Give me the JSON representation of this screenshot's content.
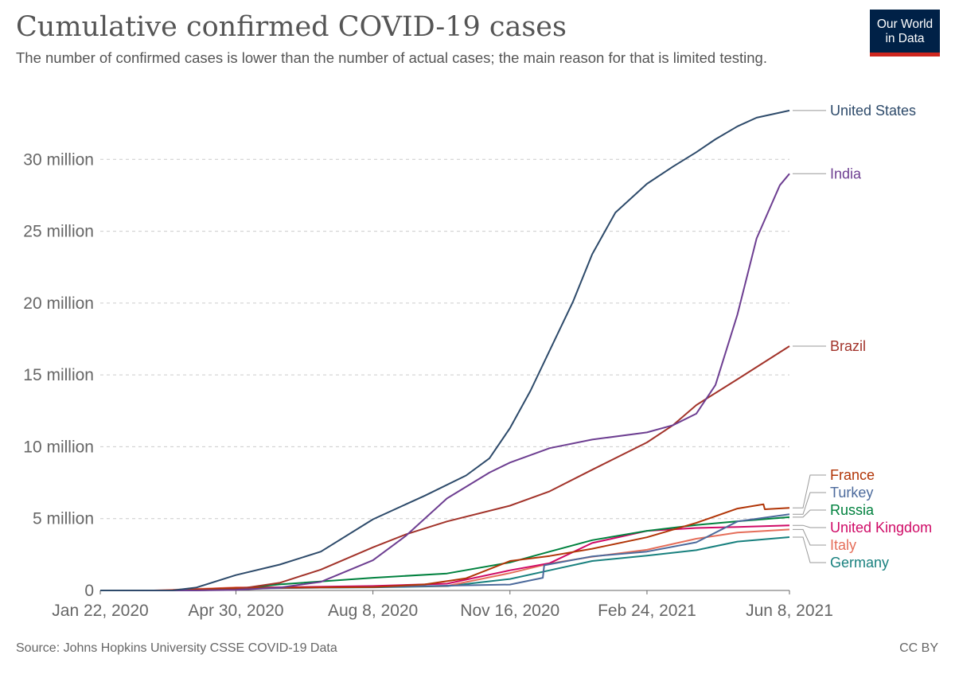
{
  "header": {
    "title": "Cumulative confirmed COVID-19 cases",
    "subtitle": "The number of confirmed cases is lower than the number of actual cases; the main reason for that is limited testing.",
    "logo_line1": "Our World",
    "logo_line2": "in Data"
  },
  "footer": {
    "source": "Source: Johns Hopkins University CSSE COVID-19 Data",
    "license": "CC BY"
  },
  "colors": {
    "grid": "#cccccc",
    "axis": "#666666",
    "tick_text": "#666666",
    "logo_bg": "#002147",
    "logo_bar": "#ce261e"
  },
  "chart_data": {
    "type": "line",
    "title": "Cumulative confirmed COVID-19 cases",
    "subtitle": "The number of confirmed cases is lower than the number of actual cases; the main reason for that is limited testing.",
    "x_start": "2020-01-22",
    "x_end": "2021-06-08",
    "x_ticks": [
      {
        "date": "2020-01-22",
        "label": "Jan 22, 2020"
      },
      {
        "date": "2020-04-30",
        "label": "Apr 30, 2020"
      },
      {
        "date": "2020-08-08",
        "label": "Aug 8, 2020"
      },
      {
        "date": "2020-11-16",
        "label": "Nov 16, 2020"
      },
      {
        "date": "2021-02-24",
        "label": "Feb 24, 2021"
      },
      {
        "date": "2021-06-08",
        "label": "Jun 8, 2021"
      }
    ],
    "ylim": [
      0,
      35000000
    ],
    "y_ticks": [
      {
        "value": 0,
        "label": "0"
      },
      {
        "value": 5000000,
        "label": "5 million"
      },
      {
        "value": 10000000,
        "label": "10 million"
      },
      {
        "value": 15000000,
        "label": "15 million"
      },
      {
        "value": 20000000,
        "label": "20 million"
      },
      {
        "value": 25000000,
        "label": "25 million"
      },
      {
        "value": 30000000,
        "label": "30 million"
      }
    ],
    "grid": true,
    "legend": "right, labels at line ends",
    "series": [
      {
        "name": "United States",
        "color": "#2d4a6a",
        "points": [
          [
            "2020-01-22",
            0
          ],
          [
            "2020-03-15",
            3000
          ],
          [
            "2020-04-01",
            200000
          ],
          [
            "2020-04-30",
            1070000
          ],
          [
            "2020-06-01",
            1800000
          ],
          [
            "2020-07-01",
            2700000
          ],
          [
            "2020-08-08",
            4950000
          ],
          [
            "2020-09-15",
            6600000
          ],
          [
            "2020-10-15",
            8000000
          ],
          [
            "2020-11-01",
            9200000
          ],
          [
            "2020-11-16",
            11300000
          ],
          [
            "2020-12-01",
            13900000
          ],
          [
            "2020-12-15",
            16700000
          ],
          [
            "2021-01-01",
            20100000
          ],
          [
            "2021-01-15",
            23400000
          ],
          [
            "2021-02-01",
            26300000
          ],
          [
            "2021-02-24",
            28300000
          ],
          [
            "2021-03-15",
            29500000
          ],
          [
            "2021-04-01",
            30500000
          ],
          [
            "2021-04-15",
            31400000
          ],
          [
            "2021-05-01",
            32300000
          ],
          [
            "2021-05-15",
            32900000
          ],
          [
            "2021-06-08",
            33400000
          ]
        ]
      },
      {
        "name": "India",
        "color": "#6d3e91",
        "points": [
          [
            "2020-01-22",
            0
          ],
          [
            "2020-04-01",
            2000
          ],
          [
            "2020-04-30",
            35000
          ],
          [
            "2020-06-01",
            200000
          ],
          [
            "2020-07-01",
            600000
          ],
          [
            "2020-08-08",
            2100000
          ],
          [
            "2020-09-01",
            3800000
          ],
          [
            "2020-10-01",
            6400000
          ],
          [
            "2020-11-01",
            8200000
          ],
          [
            "2020-11-16",
            8900000
          ],
          [
            "2020-12-15",
            9900000
          ],
          [
            "2021-01-15",
            10500000
          ],
          [
            "2021-02-24",
            11000000
          ],
          [
            "2021-03-15",
            11500000
          ],
          [
            "2021-04-01",
            12300000
          ],
          [
            "2021-04-15",
            14300000
          ],
          [
            "2021-05-01",
            19200000
          ],
          [
            "2021-05-15",
            24500000
          ],
          [
            "2021-06-01",
            28200000
          ],
          [
            "2021-06-08",
            29000000
          ]
        ]
      },
      {
        "name": "Brazil",
        "color": "#a2332a",
        "points": [
          [
            "2020-01-22",
            0
          ],
          [
            "2020-04-01",
            6000
          ],
          [
            "2020-04-30",
            85000
          ],
          [
            "2020-06-01",
            530000
          ],
          [
            "2020-07-01",
            1450000
          ],
          [
            "2020-08-08",
            3000000
          ],
          [
            "2020-09-01",
            3900000
          ],
          [
            "2020-10-01",
            4800000
          ],
          [
            "2020-11-16",
            5900000
          ],
          [
            "2020-12-15",
            6900000
          ],
          [
            "2021-01-15",
            8400000
          ],
          [
            "2021-02-24",
            10300000
          ],
          [
            "2021-03-15",
            11500000
          ],
          [
            "2021-04-01",
            12900000
          ],
          [
            "2021-05-01",
            14700000
          ],
          [
            "2021-06-08",
            17000000
          ]
        ]
      },
      {
        "name": "France",
        "color": "#b13507",
        "points": [
          [
            "2020-01-22",
            0
          ],
          [
            "2020-03-15",
            5000
          ],
          [
            "2020-04-30",
            170000
          ],
          [
            "2020-08-08",
            230000
          ],
          [
            "2020-09-15",
            420000
          ],
          [
            "2020-10-15",
            850000
          ],
          [
            "2020-11-16",
            2050000
          ],
          [
            "2020-12-15",
            2400000
          ],
          [
            "2021-01-15",
            2900000
          ],
          [
            "2021-02-24",
            3700000
          ],
          [
            "2021-04-01",
            4700000
          ],
          [
            "2021-05-01",
            5700000
          ],
          [
            "2021-05-20",
            6000000
          ],
          [
            "2021-05-21",
            5650000
          ],
          [
            "2021-06-08",
            5750000
          ]
        ]
      },
      {
        "name": "Turkey",
        "color": "#4c6a9c",
        "points": [
          [
            "2020-01-22",
            0
          ],
          [
            "2020-03-15",
            10
          ],
          [
            "2020-04-30",
            120000
          ],
          [
            "2020-08-08",
            240000
          ],
          [
            "2020-11-16",
            410000
          ],
          [
            "2020-12-10",
            880000
          ],
          [
            "2020-12-11",
            1750000
          ],
          [
            "2021-01-15",
            2370000
          ],
          [
            "2021-02-24",
            2700000
          ],
          [
            "2021-04-01",
            3350000
          ],
          [
            "2021-05-01",
            4800000
          ],
          [
            "2021-06-08",
            5300000
          ]
        ]
      },
      {
        "name": "Russia",
        "color": "#00813e",
        "points": [
          [
            "2020-01-22",
            0
          ],
          [
            "2020-03-20",
            200
          ],
          [
            "2020-04-30",
            110000
          ],
          [
            "2020-06-01",
            420000
          ],
          [
            "2020-08-08",
            880000
          ],
          [
            "2020-10-01",
            1180000
          ],
          [
            "2020-11-16",
            1950000
          ],
          [
            "2020-12-15",
            2700000
          ],
          [
            "2021-01-15",
            3500000
          ],
          [
            "2021-02-24",
            4150000
          ],
          [
            "2021-04-01",
            4550000
          ],
          [
            "2021-05-01",
            4810000
          ],
          [
            "2021-06-08",
            5100000
          ]
        ]
      },
      {
        "name": "United Kingdom",
        "color": "#cf0a66",
        "points": [
          [
            "2020-01-22",
            0
          ],
          [
            "2020-03-15",
            1400
          ],
          [
            "2020-04-30",
            170000
          ],
          [
            "2020-08-08",
            310000
          ],
          [
            "2020-10-01",
            470000
          ],
          [
            "2020-11-16",
            1400000
          ],
          [
            "2020-12-15",
            1900000
          ],
          [
            "2021-01-15",
            3300000
          ],
          [
            "2021-02-24",
            4150000
          ],
          [
            "2021-04-01",
            4350000
          ],
          [
            "2021-05-01",
            4420000
          ],
          [
            "2021-06-08",
            4530000
          ]
        ]
      },
      {
        "name": "Italy",
        "color": "#e56e5a",
        "points": [
          [
            "2020-01-22",
            0
          ],
          [
            "2020-03-01",
            1700
          ],
          [
            "2020-04-30",
            205000
          ],
          [
            "2020-08-08",
            250000
          ],
          [
            "2020-10-01",
            315000
          ],
          [
            "2020-11-16",
            1210000
          ],
          [
            "2020-12-15",
            1870000
          ],
          [
            "2021-01-15",
            2350000
          ],
          [
            "2021-02-24",
            2830000
          ],
          [
            "2021-04-01",
            3600000
          ],
          [
            "2021-05-01",
            4030000
          ],
          [
            "2021-06-08",
            4240000
          ]
        ]
      },
      {
        "name": "Germany",
        "color": "#18807e",
        "points": [
          [
            "2020-01-22",
            0
          ],
          [
            "2020-03-15",
            6000
          ],
          [
            "2020-04-30",
            162000
          ],
          [
            "2020-08-08",
            217000
          ],
          [
            "2020-10-01",
            300000
          ],
          [
            "2020-11-16",
            800000
          ],
          [
            "2020-12-15",
            1400000
          ],
          [
            "2021-01-15",
            2050000
          ],
          [
            "2021-02-24",
            2420000
          ],
          [
            "2021-04-01",
            2800000
          ],
          [
            "2021-05-01",
            3400000
          ],
          [
            "2021-06-08",
            3710000
          ]
        ]
      }
    ]
  }
}
